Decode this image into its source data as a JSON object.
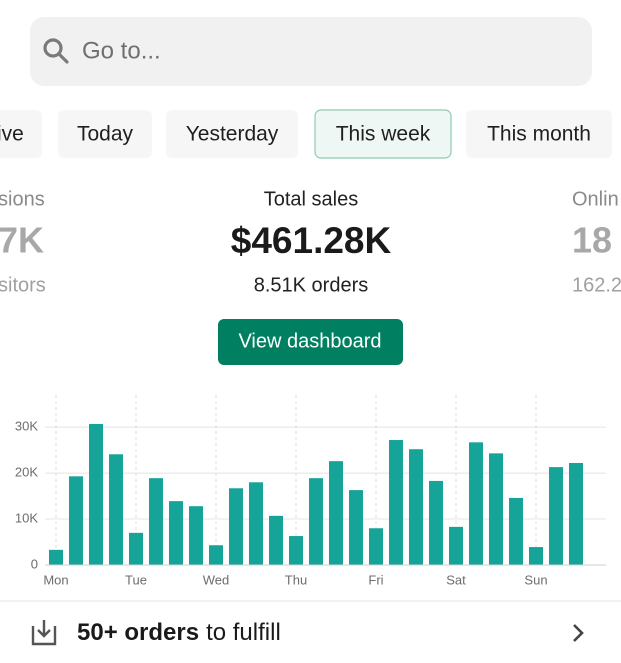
{
  "search": {
    "placeholder": "Go to..."
  },
  "tabs": {
    "items": [
      "ive",
      "Today",
      "Yesterday",
      "This week",
      "This month"
    ],
    "selected": 3
  },
  "stats": {
    "left": [
      "sions",
      "7K",
      "sitors"
    ],
    "center": {
      "title": "Total sales",
      "value": "$461.28K",
      "sub": "8.51K orders"
    },
    "right": [
      "Onlin",
      "18",
      "162.2"
    ]
  },
  "button": "View dashboard",
  "footer": {
    "bold": "50+ orders",
    "rest": "to fulfill"
  },
  "chart_data": {
    "type": "bar",
    "color": "#16a398",
    "grid": true,
    "categories": [
      "Mon",
      null,
      null,
      null,
      "Tue",
      null,
      null,
      null,
      "Wed",
      null,
      null,
      null,
      "Thu",
      null,
      null,
      null,
      "Fri",
      null,
      null,
      null,
      "Sat",
      null,
      null,
      null,
      "Sun",
      null,
      null
    ],
    "values": [
      3300,
      19300,
      30700,
      24100,
      7000,
      18900,
      13900,
      12800,
      4300,
      16700,
      18000,
      10700,
      6300,
      18900,
      22600,
      16300,
      8000,
      27200,
      25200,
      18300,
      8300,
      26700,
      24300,
      14600,
      3900,
      21300,
      22200
    ],
    "ylim": [
      0,
      37000
    ],
    "yticks": [
      0,
      {
        "value": 10000,
        "label": "10K"
      },
      {
        "value": 20000,
        "label": "20K"
      },
      {
        "value": 30000,
        "label": "30K"
      }
    ]
  }
}
